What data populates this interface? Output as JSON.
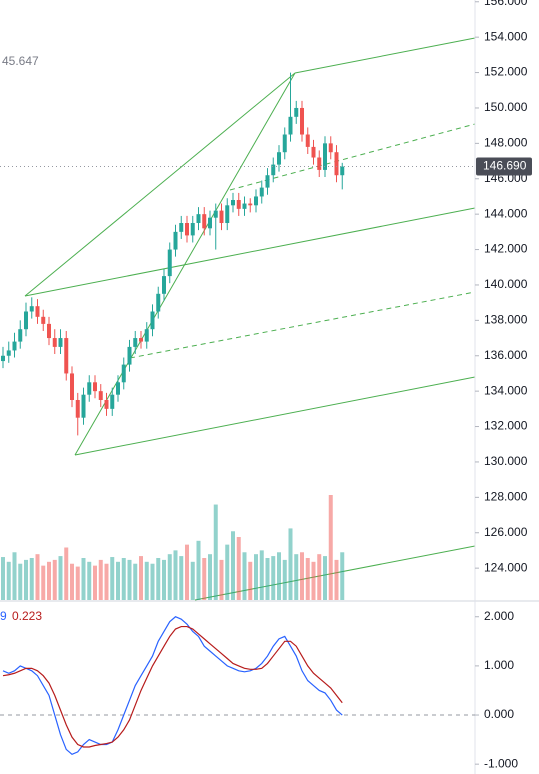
{
  "chart_data": [
    {
      "type": "candlestick",
      "annotations": [
        "45.647"
      ],
      "last_price": {
        "value": 146.69,
        "label": "146.690"
      },
      "ylim": [
        122.2,
        156.1
      ],
      "yticks": [
        {
          "value": 156,
          "label": "156.000"
        },
        {
          "value": 154,
          "label": "154.000"
        },
        {
          "value": 152,
          "label": "152.000"
        },
        {
          "value": 150,
          "label": "150.000"
        },
        {
          "value": 148,
          "label": "148.000"
        },
        {
          "value": 146,
          "label": "146.000"
        },
        {
          "value": 144,
          "label": "144.000"
        },
        {
          "value": 142,
          "label": "142.000"
        },
        {
          "value": 140,
          "label": "140.000"
        },
        {
          "value": 138,
          "label": "138.000"
        },
        {
          "value": 136,
          "label": "136.000"
        },
        {
          "value": 134,
          "label": "134.000"
        },
        {
          "value": 132,
          "label": "132.000"
        },
        {
          "value": 130,
          "label": "130.000"
        },
        {
          "value": 128,
          "label": "128.000"
        },
        {
          "value": 126,
          "label": "126.000"
        },
        {
          "value": 124,
          "label": "124.000"
        }
      ],
      "up_color": "#26a69a",
      "down_color": "#ef5350",
      "open": [
        135.7,
        136.0,
        136.3,
        136.8,
        137.5,
        138.5,
        138.8,
        138.2,
        137.8,
        137.0,
        136.5,
        137.0,
        135.0,
        133.5,
        132.5,
        133.8,
        134.5,
        134.0,
        133.5,
        133.0,
        133.8,
        134.5,
        135.5,
        136.5,
        137.0,
        136.8,
        137.5,
        138.5,
        139.5,
        140.5,
        142.0,
        143.0,
        143.5,
        142.8,
        143.5,
        144.0,
        143.2,
        143.8,
        144.2,
        143.5,
        144.5,
        144.8,
        144.3,
        144.6,
        144.5,
        145.0,
        145.5,
        146.2,
        146.8,
        147.5,
        148.5,
        149.5,
        150.0,
        148.5,
        147.8,
        147.2,
        146.5,
        148.0,
        147.5,
        146.2
      ],
      "high": [
        136.5,
        136.8,
        137.3,
        138.0,
        139.0,
        139.3,
        139.2,
        138.6,
        138.2,
        137.5,
        137.5,
        137.4,
        135.4,
        133.9,
        134.2,
        134.9,
        134.9,
        134.4,
        133.9,
        134.2,
        134.9,
        135.9,
        136.9,
        137.4,
        137.4,
        137.9,
        138.9,
        139.9,
        140.9,
        142.4,
        143.4,
        143.9,
        143.9,
        143.9,
        144.4,
        144.4,
        144.2,
        144.6,
        144.6,
        144.9,
        145.2,
        145.2,
        145.0,
        144.9,
        145.4,
        145.9,
        146.6,
        147.2,
        147.9,
        148.9,
        152.0,
        150.4,
        150.4,
        148.9,
        148.2,
        147.6,
        148.4,
        148.4,
        147.9,
        146.9
      ],
      "low": [
        135.3,
        135.6,
        135.9,
        136.4,
        137.1,
        138.1,
        137.8,
        137.4,
        136.6,
        136.1,
        136.1,
        134.6,
        133.1,
        131.5,
        132.1,
        133.4,
        133.6,
        133.1,
        132.6,
        132.6,
        133.4,
        134.1,
        135.1,
        136.1,
        136.4,
        136.4,
        137.1,
        138.1,
        139.1,
        140.1,
        141.6,
        142.6,
        142.4,
        142.4,
        143.1,
        142.8,
        142.8,
        142.0,
        143.1,
        143.1,
        144.1,
        143.9,
        143.9,
        144.1,
        144.1,
        144.6,
        145.1,
        145.8,
        146.4,
        147.1,
        148.1,
        149.1,
        148.1,
        147.4,
        146.8,
        146.1,
        146.1,
        147.1,
        145.8,
        145.4
      ],
      "close": [
        136.0,
        136.3,
        136.8,
        137.5,
        138.5,
        138.8,
        138.2,
        137.8,
        137.0,
        136.5,
        137.0,
        135.0,
        133.5,
        132.5,
        133.8,
        134.5,
        134.0,
        133.5,
        133.0,
        133.8,
        134.5,
        135.5,
        136.5,
        137.0,
        136.8,
        137.5,
        138.5,
        139.5,
        140.5,
        142.0,
        143.0,
        143.5,
        142.8,
        143.5,
        144.0,
        143.2,
        143.8,
        144.2,
        143.5,
        144.5,
        144.8,
        144.3,
        144.6,
        144.5,
        145.0,
        145.5,
        146.2,
        146.8,
        147.5,
        148.5,
        149.5,
        150.0,
        148.5,
        147.8,
        147.2,
        146.5,
        148.0,
        147.5,
        146.2,
        146.69
      ],
      "volume": [
        45,
        40,
        50,
        38,
        42,
        44,
        48,
        36,
        40,
        42,
        46,
        55,
        38,
        35,
        44,
        40,
        36,
        42,
        38,
        45,
        40,
        44,
        42,
        38,
        46,
        40,
        38,
        44,
        42,
        48,
        52,
        46,
        58,
        40,
        62,
        44,
        48,
        100,
        42,
        58,
        72,
        66,
        50,
        40,
        48,
        52,
        44,
        46,
        50,
        42,
        75,
        48,
        50,
        44,
        40,
        48,
        46,
        110,
        42,
        50
      ]
    },
    {
      "type": "line",
      "legend_labels": [
        "9",
        "0.223"
      ],
      "ylim": [
        -1.2,
        2.3
      ],
      "yticks": [
        {
          "value": 2,
          "label": "2.000"
        },
        {
          "value": 1,
          "label": "1.000"
        },
        {
          "value": 0,
          "label": "0.000"
        },
        {
          "value": -1,
          "label": "-1.000"
        }
      ],
      "series": [
        {
          "color": "#2962ff",
          "values": [
            0.9,
            0.85,
            0.9,
            1.0,
            0.95,
            0.9,
            0.8,
            0.6,
            0.4,
            0.0,
            -0.4,
            -0.7,
            -0.8,
            -0.75,
            -0.6,
            -0.5,
            -0.55,
            -0.6,
            -0.6,
            -0.55,
            -0.3,
            0.0,
            0.3,
            0.6,
            0.8,
            1.0,
            1.2,
            1.5,
            1.7,
            1.9,
            2.0,
            1.95,
            1.85,
            1.7,
            1.6,
            1.4,
            1.3,
            1.2,
            1.1,
            1.0,
            0.95,
            0.9,
            0.88,
            0.9,
            0.95,
            1.05,
            1.2,
            1.4,
            1.55,
            1.6,
            1.4,
            1.2,
            0.9,
            0.7,
            0.6,
            0.5,
            0.45,
            0.3,
            0.1,
            0.0
          ]
        },
        {
          "color": "#b71c1c",
          "values": [
            0.8,
            0.82,
            0.85,
            0.9,
            0.95,
            0.95,
            0.9,
            0.8,
            0.65,
            0.4,
            0.1,
            -0.2,
            -0.45,
            -0.6,
            -0.65,
            -0.65,
            -0.62,
            -0.6,
            -0.58,
            -0.55,
            -0.45,
            -0.3,
            -0.1,
            0.2,
            0.5,
            0.75,
            1.0,
            1.2,
            1.4,
            1.6,
            1.75,
            1.8,
            1.8,
            1.75,
            1.65,
            1.55,
            1.45,
            1.35,
            1.25,
            1.15,
            1.05,
            1.0,
            0.95,
            0.93,
            0.93,
            0.95,
            1.05,
            1.2,
            1.35,
            1.5,
            1.5,
            1.4,
            1.2,
            1.0,
            0.85,
            0.75,
            0.65,
            0.55,
            0.4,
            0.25
          ]
        }
      ]
    }
  ]
}
